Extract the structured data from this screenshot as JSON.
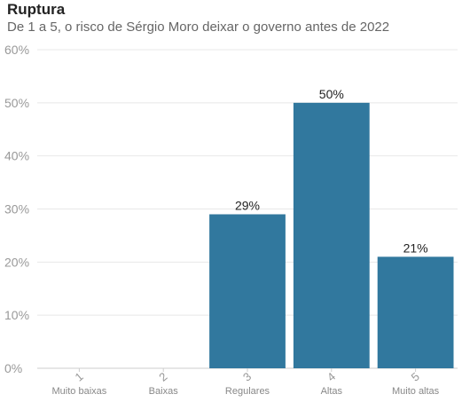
{
  "header": {
    "title": "Ruptura",
    "subtitle": "De 1 a 5, o risco de Sérgio Moro deixar o governo antes de 2022"
  },
  "chart_data": {
    "type": "bar",
    "title": "Ruptura",
    "subtitle": "De 1 a 5, o risco de Sérgio Moro deixar o governo antes de 2022",
    "categories": [
      "1",
      "2",
      "3",
      "4",
      "5"
    ],
    "category_labels": [
      "Muito baixas",
      "Baixas",
      "Regulares",
      "Altas",
      "Muito altas"
    ],
    "values": [
      0,
      0,
      29,
      50,
      21
    ],
    "data_labels": [
      "",
      "",
      "29%",
      "50%",
      "21%"
    ],
    "ylim": [
      0,
      60
    ],
    "yticks": [
      0,
      10,
      20,
      30,
      40,
      50,
      60
    ],
    "ytick_labels": [
      "0%",
      "10%",
      "20%",
      "30%",
      "40%",
      "50%",
      "60%"
    ],
    "xlabel": "",
    "ylabel": "",
    "grid": true,
    "bar_color": "#31789e",
    "gridline_color": "#e8e8e8"
  }
}
